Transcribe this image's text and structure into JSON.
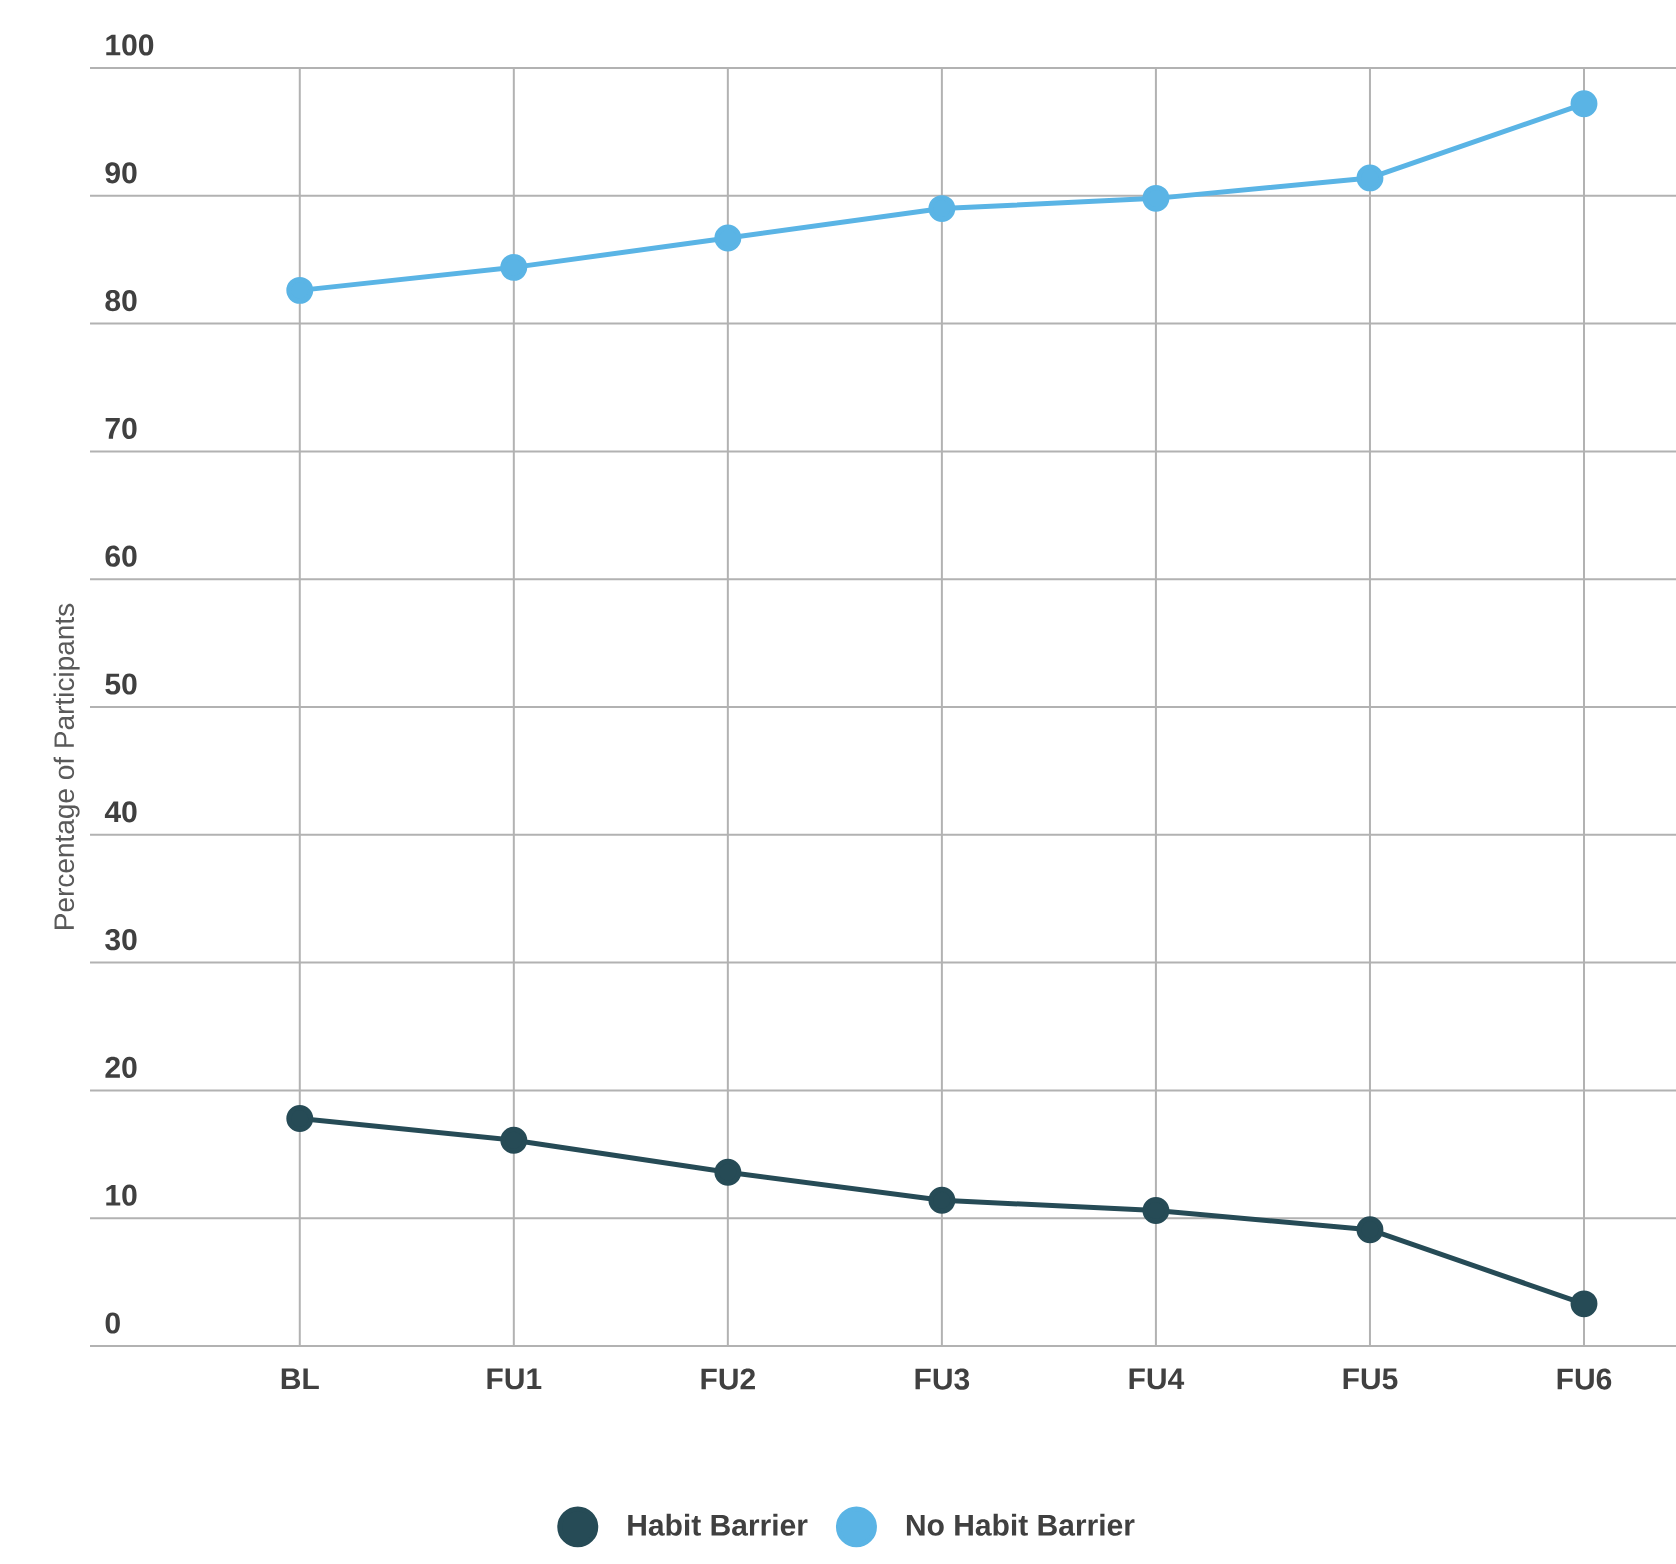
{
  "chart_data": {
    "type": "line",
    "ylabel": "Percentage of Participants",
    "categories": [
      "BL",
      "FU1",
      "FU2",
      "FU3",
      "FU4",
      "FU5",
      "FU6"
    ],
    "series": [
      {
        "name": "Habit Barrier",
        "color": "#264b56",
        "values": [
          17.8,
          16.1,
          13.6,
          11.4,
          10.6,
          9.1,
          3.3
        ]
      },
      {
        "name": "No Habit Barrier",
        "color": "#5ab4e5",
        "values": [
          82.6,
          84.4,
          86.7,
          89.0,
          89.8,
          91.4,
          97.2
        ]
      }
    ],
    "ylim": [
      0,
      100
    ],
    "yticks": [
      0,
      10,
      20,
      30,
      40,
      50,
      60,
      70,
      80,
      90,
      100
    ],
    "grid": true,
    "legend": "bottom",
    "marker": "circle",
    "line_style": "solid"
  }
}
